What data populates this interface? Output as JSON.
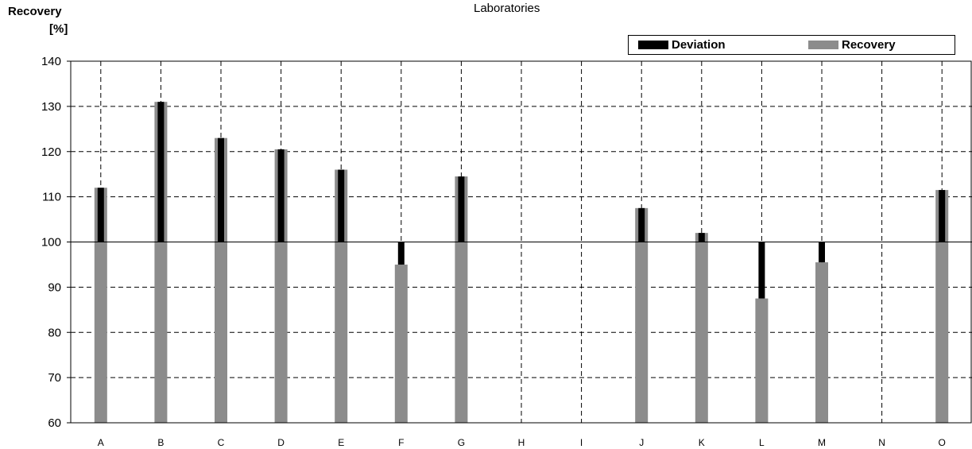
{
  "chart_data": {
    "type": "bar",
    "title": "",
    "xlabel": "Laboratories",
    "ylabel": "Recovery",
    "ylabel_unit": "[%]",
    "ylim": [
      60,
      140
    ],
    "yticks": [
      60,
      70,
      80,
      90,
      100,
      110,
      120,
      130,
      140
    ],
    "reference_line": 100,
    "grid": true,
    "legend_position": "top-right",
    "categories": [
      "A",
      "B",
      "C",
      "D",
      "E",
      "F",
      "G",
      "H",
      "I",
      "J",
      "K",
      "L",
      "M",
      "N",
      "O"
    ],
    "series": [
      {
        "name": "Deviation",
        "color": "#000000",
        "values": [
          12,
          31,
          23,
          20.5,
          16,
          -5,
          14.5,
          null,
          null,
          7.5,
          2,
          -12.5,
          -4.5,
          null,
          11.5
        ]
      },
      {
        "name": "Recovery",
        "color": "#8c8c8c",
        "values": [
          112,
          131,
          123,
          120.5,
          116,
          95,
          114.5,
          null,
          null,
          107.5,
          102,
          87.5,
          95.5,
          null,
          111.5
        ]
      }
    ]
  }
}
